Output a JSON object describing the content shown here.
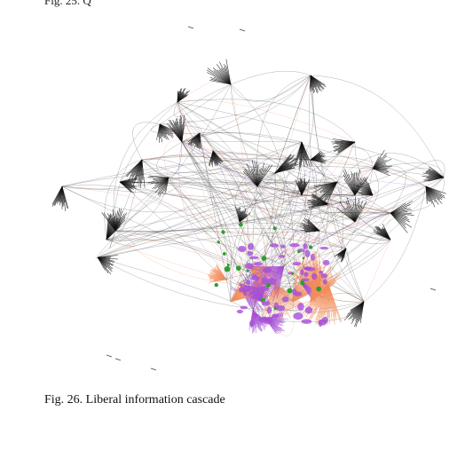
{
  "top_fragment": "Fig. 25. Q",
  "caption": "Fig. 26. Liberal information cascade",
  "colors": {
    "conservative": "#111111",
    "liberal_orange": "#f28d5a",
    "liberal_purple": "#a64fd6",
    "neutral_green": "#2f9e2f"
  }
}
